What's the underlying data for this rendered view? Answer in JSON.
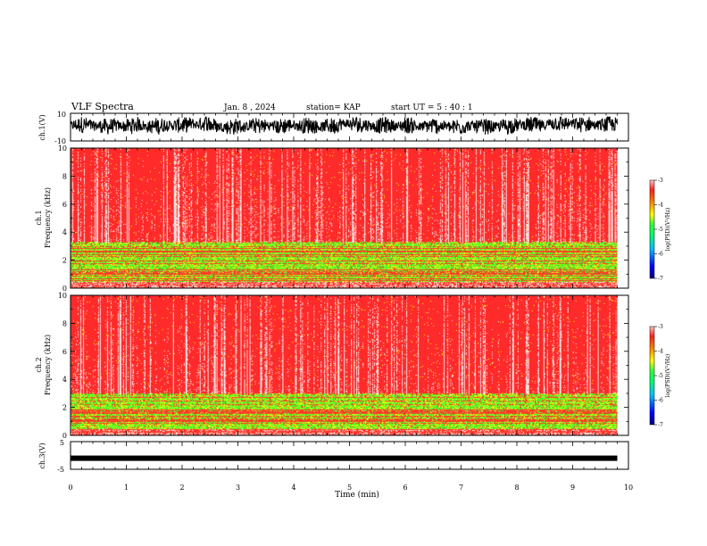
{
  "header": {
    "title": "VLF Spectra",
    "date": "Jan. 8 , 2024",
    "station": "station= KAP",
    "start_ut": "start  UT =   5 : 40 : 1"
  },
  "colors": {
    "background_red": "#ff2a2a",
    "speckle_white": "#ffd7d7",
    "band_green": "#33ff33",
    "band_yellow": "#ffff00",
    "trace": "#000000"
  },
  "chart_data": [
    {
      "type": "line",
      "panel": "ch1_waveform",
      "ylabel": "ch.1(V)",
      "ylim": [
        -10,
        10
      ],
      "y_ticks": [
        "10",
        "-10"
      ],
      "xlim": [
        0,
        10
      ],
      "description_values": {
        "mean": 1,
        "amplitude": 6
      }
    },
    {
      "type": "heatmap",
      "panel": "ch1_spectrogram",
      "ylabel": "ch.1\nFrequency (kHz)",
      "ylim": [
        0,
        10
      ],
      "y_ticks": [
        "0",
        "2",
        "4",
        "6",
        "8",
        "10"
      ],
      "xlim": [
        0,
        9.8
      ],
      "low_band_top_khz": 3.3,
      "colorbar": {
        "label": "log(PSD)(V²/Hz)",
        "range": [
          -7,
          -3
        ],
        "ticks": [
          "-3",
          "-4",
          "-5",
          "-6",
          "-7"
        ]
      }
    },
    {
      "type": "heatmap",
      "panel": "ch2_spectrogram",
      "ylabel": "ch.2\nFrequency (kHz)",
      "ylim": [
        0,
        10
      ],
      "y_ticks": [
        "0",
        "2",
        "4",
        "6",
        "8",
        "10"
      ],
      "xlim": [
        0,
        9.8
      ],
      "low_band_top_khz": 3.0,
      "colorbar": {
        "label": "log(PSD)(V²/Hz)",
        "range": [
          -7,
          -3
        ],
        "ticks": [
          "-3",
          "-4",
          "-5",
          "-6",
          "-7"
        ]
      }
    },
    {
      "type": "line",
      "panel": "ch3_waveform",
      "ylabel": "ch.3(V)",
      "ylim": [
        -5,
        5
      ],
      "y_ticks": [
        "5",
        "-5"
      ],
      "xlim": [
        0,
        10
      ],
      "level": -1
    }
  ],
  "xaxis": {
    "label": "Time  (min)",
    "ticks": [
      "0",
      "1",
      "2",
      "3",
      "4",
      "5",
      "6",
      "7",
      "8",
      "9",
      "10"
    ],
    "range": [
      0,
      10
    ]
  }
}
